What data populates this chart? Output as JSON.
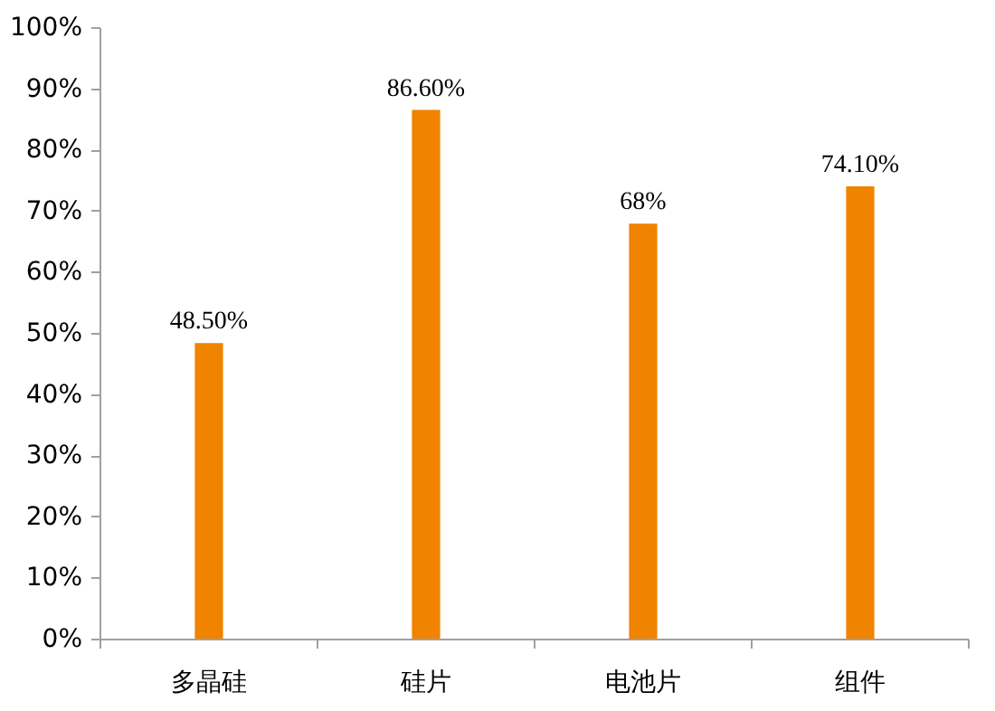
{
  "chart_data": {
    "type": "bar",
    "categories": [
      "多晶硅",
      "硅片",
      "电池片",
      "组件"
    ],
    "values": [
      48.5,
      86.6,
      68,
      74.1
    ],
    "color": "#f08300",
    "value_labels": [
      "48.50%",
      "86.60%",
      "68%",
      "74.10%"
    ],
    "ylim": [
      0,
      100
    ],
    "yticks": [
      {
        "value": 0,
        "label": "0%"
      },
      {
        "value": 10,
        "label": "10%"
      },
      {
        "value": 20,
        "label": "20%"
      },
      {
        "value": 30,
        "label": "30%"
      },
      {
        "value": 40,
        "label": "40%"
      },
      {
        "value": 50,
        "label": "50%"
      },
      {
        "value": 60,
        "label": "60%"
      },
      {
        "value": 70,
        "label": "70%"
      },
      {
        "value": 80,
        "label": "80%"
      },
      {
        "value": 90,
        "label": "90%"
      },
      {
        "value": 100,
        "label": "100%"
      }
    ],
    "grid": false
  }
}
